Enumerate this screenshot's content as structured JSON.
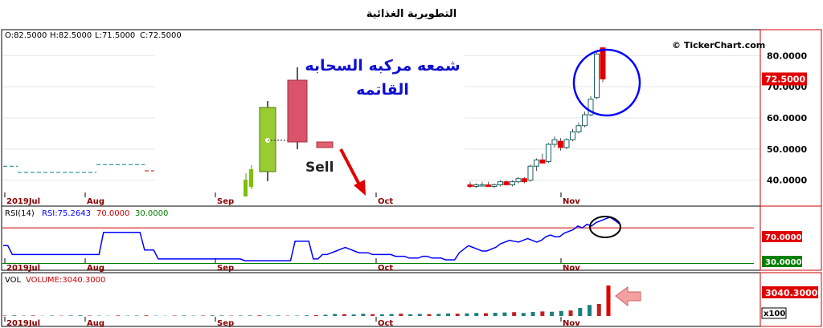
{
  "title": "التطويرية الغذائية",
  "header": {
    "open": "O:82.5000",
    "high": "H:82.5000",
    "low": "L:71.5000",
    "close": "C:72.5000"
  },
  "watermark": "© TickerChart.com",
  "annotation": {
    "title_line1": "شمعه مركبه السحابه",
    "title_line2": "القاتمه",
    "sell_label": "Sell"
  },
  "colors": {
    "up": "#00a000",
    "down": "#e00000",
    "rsi_line": "#0000ff",
    "circle": "#0000ff",
    "accent": "#cc0000"
  },
  "chart_data": [
    {
      "type": "candlestick",
      "name": "price",
      "x_months": [
        "2019Jul",
        "Aug",
        "Sep",
        "Oct",
        "Nov"
      ],
      "y_ticks": [
        "80.0000",
        "70.0000",
        "60.0000",
        "50.0000",
        "40.0000"
      ],
      "ylim": [
        34,
        86
      ],
      "last_price": "72.5000",
      "visible_candles": [
        {
          "o": 38.5,
          "h": 39.5,
          "l": 37.5,
          "c": 38.0
        },
        {
          "o": 38.0,
          "h": 39.0,
          "l": 37.5,
          "c": 38.5
        },
        {
          "o": 38.5,
          "h": 39.5,
          "l": 38.0,
          "c": 38.5
        },
        {
          "o": 38.5,
          "h": 39.5,
          "l": 38.0,
          "c": 38.0
        },
        {
          "o": 38.0,
          "h": 39.0,
          "l": 37.5,
          "c": 38.5
        },
        {
          "o": 38.5,
          "h": 40.0,
          "l": 38.0,
          "c": 39.5
        },
        {
          "o": 39.5,
          "h": 40.0,
          "l": 38.5,
          "c": 38.5
        },
        {
          "o": 38.5,
          "h": 40.0,
          "l": 38.0,
          "c": 39.5
        },
        {
          "o": 39.5,
          "h": 41.0,
          "l": 39.0,
          "c": 40.5
        },
        {
          "o": 40.5,
          "h": 41.0,
          "l": 39.0,
          "c": 39.5
        },
        {
          "o": 40.0,
          "h": 45.0,
          "l": 39.5,
          "c": 44.5
        },
        {
          "o": 44.5,
          "h": 47.0,
          "l": 43.0,
          "c": 46.5
        },
        {
          "o": 46.5,
          "h": 48.5,
          "l": 45.5,
          "c": 45.5
        },
        {
          "o": 46.0,
          "h": 52.0,
          "l": 45.5,
          "c": 51.5
        },
        {
          "o": 51.5,
          "h": 54.0,
          "l": 50.5,
          "c": 53.0
        },
        {
          "o": 52.5,
          "h": 53.5,
          "l": 49.5,
          "c": 50.5
        },
        {
          "o": 50.5,
          "h": 53.5,
          "l": 50.0,
          "c": 53.0
        },
        {
          "o": 53.0,
          "h": 56.5,
          "l": 52.5,
          "c": 55.5
        },
        {
          "o": 55.5,
          "h": 58.5,
          "l": 55.0,
          "c": 57.5
        },
        {
          "o": 57.5,
          "h": 62.0,
          "l": 57.0,
          "c": 61.0
        },
        {
          "o": 61.0,
          "h": 67.0,
          "l": 60.5,
          "c": 66.0
        },
        {
          "o": 66.5,
          "h": 81.0,
          "l": 66.0,
          "c": 80.5
        },
        {
          "o": 82.5,
          "h": 82.5,
          "l": 71.5,
          "c": 72.5
        }
      ]
    },
    {
      "type": "line",
      "name": "RSI(14)",
      "labels": {
        "name": "RSI(14)",
        "rsi": "RSI:75.2643",
        "upper": "70.0000",
        "lower": "30.0000"
      },
      "upper_level": 70,
      "lower_level": 30,
      "ylim": [
        25,
        90
      ],
      "values": [
        50,
        50,
        40,
        40,
        40,
        40,
        40,
        40,
        40,
        40,
        40,
        40,
        40,
        40,
        40,
        40,
        40,
        40,
        40,
        40,
        40,
        40,
        65,
        65,
        65,
        65,
        65,
        65,
        65,
        65,
        65,
        45,
        45,
        45,
        35,
        35,
        35,
        35,
        35,
        35,
        35,
        35,
        35,
        35,
        35,
        35,
        35,
        35,
        35,
        35,
        35,
        35,
        35,
        33,
        33,
        33,
        33,
        33,
        33,
        33,
        33,
        33,
        33,
        33,
        55,
        55,
        55,
        55,
        35,
        35,
        40,
        40,
        42,
        44,
        46,
        48,
        46,
        44,
        42,
        42,
        42,
        40,
        40,
        40,
        40,
        40,
        38,
        38,
        38,
        36,
        36,
        36,
        38,
        38,
        36,
        36,
        36,
        34,
        34,
        34,
        42,
        46,
        50,
        48,
        46,
        44,
        44,
        46,
        48,
        52,
        54,
        56,
        55,
        54,
        56,
        58,
        56,
        54,
        56,
        60,
        62,
        60,
        60,
        64,
        66,
        68,
        72,
        70,
        74,
        72,
        76,
        78,
        80,
        82,
        79,
        75
      ]
    },
    {
      "type": "bar",
      "name": "VOL",
      "labels": {
        "name": "VOL",
        "volume": "VOLUME:3040.3000",
        "last": "3040.3000",
        "unit": "x100"
      },
      "ylim": [
        0,
        3200
      ],
      "values": [
        40,
        60,
        30,
        50,
        20,
        40,
        30,
        50,
        60,
        40,
        30,
        20,
        50,
        30,
        40,
        60,
        30,
        20,
        40,
        50,
        30,
        40,
        60,
        50,
        30,
        40,
        50,
        60,
        40,
        50,
        30,
        40,
        60,
        80,
        120,
        200,
        180,
        150,
        220,
        180,
        160,
        190,
        230,
        170,
        200,
        180,
        210,
        250,
        230,
        260,
        300,
        280,
        320,
        350,
        380,
        300,
        400,
        450,
        420,
        500,
        550,
        800,
        1100,
        1200,
        3040
      ]
    }
  ]
}
